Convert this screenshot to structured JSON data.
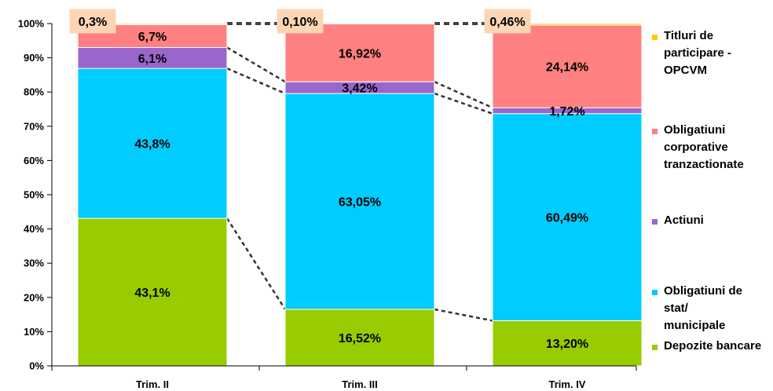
{
  "chart_data": {
    "type": "bar",
    "stacked": true,
    "categories": [
      "Trim. II",
      "Trim. III",
      "Trim. IV"
    ],
    "ylim": [
      0,
      100
    ],
    "yticks": [
      "0%",
      "10%",
      "20%",
      "30%",
      "40%",
      "50%",
      "60%",
      "70%",
      "80%",
      "90%",
      "100%"
    ],
    "series": [
      {
        "name": "Depozite bancare",
        "color": "#99cc00",
        "values": [
          43.1,
          16.52,
          13.2
        ],
        "labels": [
          "43,1%",
          "16,52%",
          "13,20%"
        ]
      },
      {
        "name": "Obligatiuni de stat/ municipale",
        "legend_lines": [
          "Obligatiuni de",
          "stat/",
          "municipale"
        ],
        "color": "#00ccff",
        "values": [
          43.8,
          63.05,
          60.49
        ],
        "labels": [
          "43,8%",
          "63,05%",
          "60,49%"
        ]
      },
      {
        "name": "Actiuni",
        "legend_lines": [
          "Actiuni"
        ],
        "color": "#9966cc",
        "values": [
          6.1,
          3.42,
          1.72
        ],
        "labels": [
          "6,1%",
          "3,42%",
          "1,72%"
        ]
      },
      {
        "name": "Obligatiuni corporative tranzactionate",
        "legend_lines": [
          "Obligatiuni",
          "corporative",
          "tranzactionate"
        ],
        "color": "#ff8080",
        "values": [
          6.7,
          16.92,
          24.14
        ],
        "labels": [
          "6,7%",
          "16,92%",
          "24,14%"
        ]
      },
      {
        "name": "Titluri de participare - OPCVM",
        "legend_lines": [
          "Titluri de",
          "participare -",
          "OPCVM"
        ],
        "color": "#ffcc00",
        "values": [
          0.3,
          0.1,
          0.46
        ],
        "labels": [
          "0,3%",
          "0,10%",
          "0,46%"
        ]
      }
    ],
    "callout_color": "#fcd5b4",
    "grid": false,
    "legend_position": "right"
  }
}
